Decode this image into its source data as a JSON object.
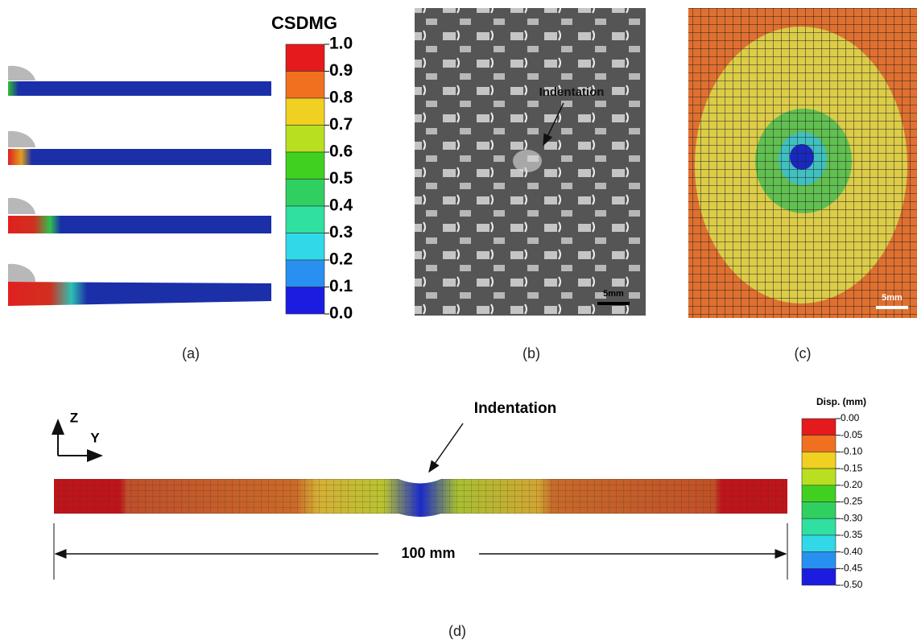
{
  "panel_a": {
    "colorbar": {
      "title": "CSDMG",
      "labels": [
        "1.0",
        "0.9",
        "0.8",
        "0.7",
        "0.6",
        "0.5",
        "0.4",
        "0.3",
        "0.2",
        "0.1",
        "0.0"
      ]
    },
    "caption": "(a)"
  },
  "panel_b": {
    "annotation": "Indentation",
    "scale": "5mm",
    "caption": "(b)"
  },
  "panel_c": {
    "scale": "5mm",
    "caption": "(c)"
  },
  "panel_d": {
    "axis_z": "Z",
    "axis_y": "Y",
    "annotation": "Indentation",
    "dimension": "100 mm",
    "colorbar": {
      "title": "Disp. (mm)",
      "labels": [
        "0.00",
        "-0.05",
        "-0.10",
        "-0.15",
        "-0.20",
        "-0.25",
        "-0.30",
        "-0.35",
        "-0.40",
        "-0.45",
        "-0.50"
      ]
    },
    "caption": "(d)"
  }
}
